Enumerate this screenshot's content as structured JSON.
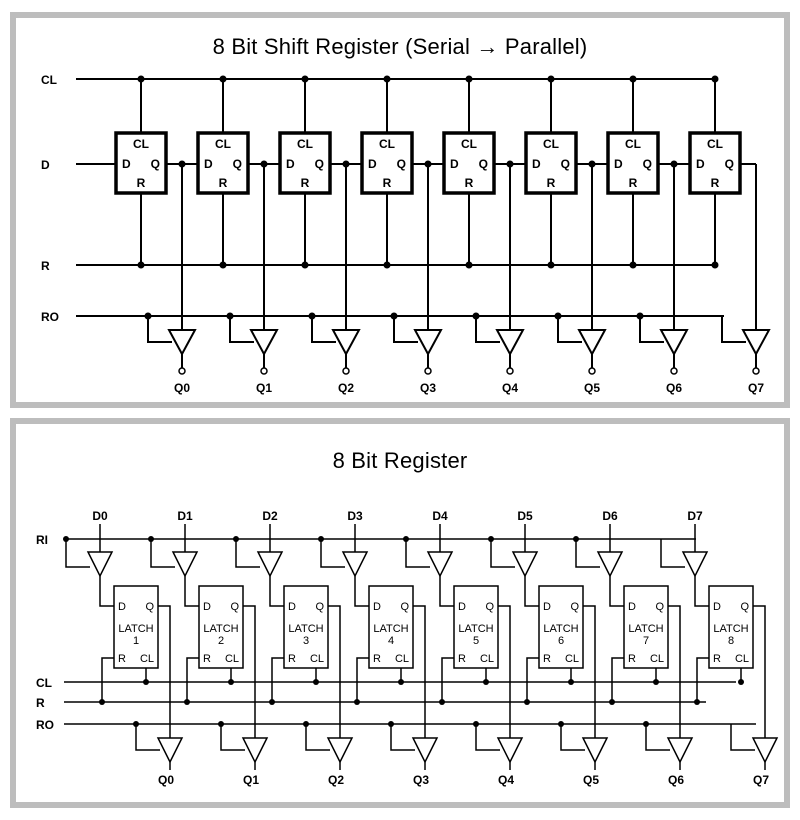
{
  "shift_register": {
    "title": "8 Bit Shift Register (Serial → Parallel)",
    "inputs": {
      "clock": "CL",
      "data": "D",
      "reset": "R",
      "read_out": "RO"
    },
    "flipflop_pins": {
      "clock": "CL",
      "data": "D",
      "output": "Q",
      "reset": "R"
    },
    "outputs": [
      "Q0",
      "Q1",
      "Q2",
      "Q3",
      "Q4",
      "Q5",
      "Q6",
      "Q7"
    ]
  },
  "register": {
    "title": "8 Bit Register",
    "data_inputs": [
      "D0",
      "D1",
      "D2",
      "D3",
      "D4",
      "D5",
      "D6",
      "D7"
    ],
    "inputs": {
      "read_in": "RI",
      "clock": "CL",
      "reset": "R",
      "read_out": "RO"
    },
    "latch_pins": {
      "data": "D",
      "output": "Q",
      "reset": "R",
      "clock": "CL"
    },
    "latch_name": "LATCH",
    "latch_numbers": [
      "1",
      "2",
      "3",
      "4",
      "5",
      "6",
      "7",
      "8"
    ],
    "outputs": [
      "Q0",
      "Q1",
      "Q2",
      "Q3",
      "Q4",
      "Q5",
      "Q6",
      "Q7"
    ]
  }
}
